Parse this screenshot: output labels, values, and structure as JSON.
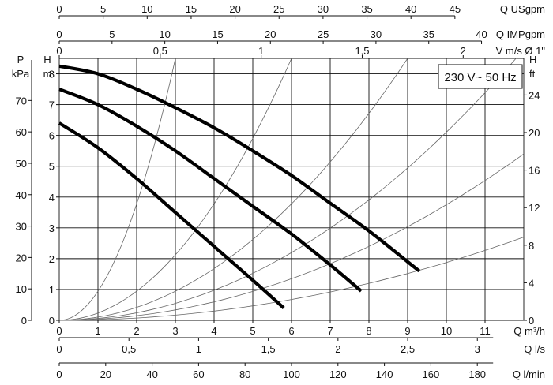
{
  "chart_data": {
    "type": "line",
    "annotation": "230 V~ 50 Hz",
    "xlabel": "Q m³/h",
    "xlim": [
      0,
      12
    ],
    "x_ticks": [
      "0",
      "1",
      "2",
      "3",
      "4",
      "5",
      "6",
      "7",
      "8",
      "9",
      "10",
      "11"
    ],
    "ylabel": "H",
    "yunit": "m",
    "ylim": [
      0,
      8.5
    ],
    "y_ticks": [
      "0",
      "1",
      "2",
      "3",
      "4",
      "5",
      "6",
      "7",
      "8"
    ],
    "grid": true,
    "series": [
      {
        "x": [
          0,
          1,
          2,
          3,
          4,
          5,
          5.8
        ],
        "y": [
          6.4,
          5.6,
          4.6,
          3.5,
          2.4,
          1.3,
          0.4
        ]
      },
      {
        "x": [
          0,
          1,
          2,
          3,
          4,
          5,
          6,
          7,
          7.8
        ],
        "y": [
          7.5,
          7.0,
          6.3,
          5.5,
          4.6,
          3.7,
          2.8,
          1.8,
          0.95
        ]
      },
      {
        "x": [
          0,
          1,
          2,
          3,
          4,
          5,
          6,
          7,
          8,
          9,
          9.3
        ],
        "y": [
          8.25,
          8.0,
          7.5,
          6.9,
          6.25,
          5.5,
          4.7,
          3.8,
          2.9,
          1.9,
          1.6
        ]
      }
    ],
    "system_curves": [
      {
        "x": [
          0,
          1,
          2,
          3,
          3.0
        ],
        "y": [
          0,
          0.95,
          3.8,
          8.5,
          8.5
        ]
      },
      {
        "x": [
          0,
          1,
          2,
          3,
          4,
          5,
          6.0
        ],
        "y": [
          0,
          0.24,
          0.94,
          2.1,
          3.8,
          5.9,
          8.5
        ]
      },
      {
        "x": [
          0,
          2,
          4,
          6,
          8,
          9.0
        ],
        "y": [
          0,
          0.42,
          1.7,
          3.8,
          6.7,
          8.5
        ]
      },
      {
        "x": [
          0,
          2,
          4,
          6,
          8,
          10,
          11.8
        ],
        "y": [
          0,
          0.24,
          0.97,
          2.2,
          3.9,
          6.1,
          8.5
        ]
      },
      {
        "x": [
          0,
          2,
          4,
          6,
          8,
          10,
          12
        ],
        "y": [
          0,
          0.15,
          0.6,
          1.35,
          2.4,
          3.75,
          5.4
        ]
      },
      {
        "x": [
          0,
          2,
          4,
          6,
          8,
          10,
          12
        ],
        "y": [
          0,
          0.08,
          0.3,
          0.65,
          1.2,
          1.85,
          2.7
        ]
      }
    ],
    "top_axes": [
      {
        "label": "Q USgpm",
        "max": 52.83,
        "ticks": [
          "0",
          "5",
          "10",
          "15",
          "20",
          "25",
          "30",
          "35",
          "40",
          "45"
        ],
        "tick_values": [
          0,
          5,
          10,
          15,
          20,
          25,
          30,
          35,
          40,
          45
        ]
      },
      {
        "label": "Q IMPgpm",
        "max": 44.0,
        "ticks": [
          "0",
          "5",
          "10",
          "15",
          "20",
          "25",
          "30",
          "35",
          "40"
        ],
        "tick_values": [
          0,
          5,
          10,
          15,
          20,
          25,
          30,
          35,
          40
        ]
      },
      {
        "label": "V m/s Ø 1\"",
        "max": 2.3,
        "ticks": [
          "0",
          "0,5",
          "1",
          "1,5",
          "2"
        ],
        "tick_values": [
          0,
          0.5,
          1,
          1.5,
          2
        ]
      }
    ],
    "left_axis_kpa": {
      "label_top": "P",
      "label_unit": "kPa",
      "ticks": [
        "0",
        "10",
        "20",
        "30",
        "40",
        "50",
        "60",
        "70"
      ],
      "tick_values": [
        0,
        10,
        20,
        30,
        40,
        50,
        60,
        70
      ],
      "max": 83.4
    },
    "right_axis_ft": {
      "label_top": "H",
      "label_unit": "ft",
      "ticks": [
        "0",
        "4",
        "8",
        "12",
        "16",
        "20",
        "24"
      ],
      "tick_values": [
        0,
        4,
        8,
        12,
        16,
        20,
        24
      ],
      "max": 27.9
    },
    "bottom_axes": [
      {
        "label": "Q l/s",
        "max": 3.333,
        "ticks": [
          "0",
          "0,5",
          "1",
          "1,5",
          "2",
          "2,5",
          "3"
        ],
        "tick_values": [
          0,
          0.5,
          1,
          1.5,
          2,
          2.5,
          3
        ]
      },
      {
        "label": "Q l/min",
        "max": 200,
        "ticks": [
          "0",
          "20",
          "40",
          "60",
          "80",
          "100",
          "120",
          "140",
          "160",
          "180"
        ],
        "tick_values": [
          0,
          20,
          40,
          60,
          80,
          100,
          120,
          140,
          160,
          180
        ]
      }
    ]
  }
}
